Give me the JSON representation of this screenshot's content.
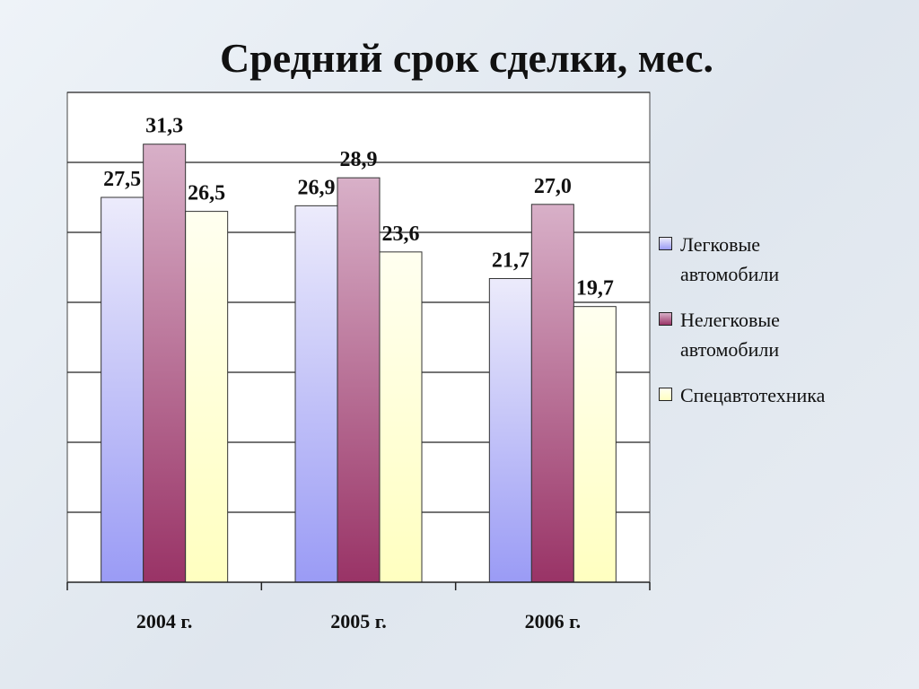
{
  "chart_data": {
    "type": "bar",
    "title": "Средний срок сделки, мес.",
    "categories": [
      "2004 г.",
      "2005 г.",
      "2006 г."
    ],
    "series": [
      {
        "name": "Легковые автомобили",
        "values": [
          27.5,
          26.9,
          21.7
        ],
        "labels": [
          "27,5",
          "26,9",
          "21,7"
        ],
        "color_top": "#ecebfb",
        "color_bottom": "#9a9bf5"
      },
      {
        "name": "Нелегковые автомобили",
        "values": [
          31.3,
          28.9,
          27.0
        ],
        "labels": [
          "31,3",
          "28,9",
          "27,0"
        ],
        "color_top": "#d8b0c8",
        "color_bottom": "#993366"
      },
      {
        "name": "Спецавтотехника",
        "values": [
          26.5,
          23.6,
          19.7
        ],
        "labels": [
          "26,5",
          "23,6",
          "19,7"
        ],
        "color_top": "#fffff0",
        "color_bottom": "#ffffc0"
      }
    ],
    "ylim": [
      0,
      35
    ],
    "ytick_step": 5,
    "grid": true,
    "legend_position": "right",
    "xlabel": "",
    "ylabel": ""
  }
}
